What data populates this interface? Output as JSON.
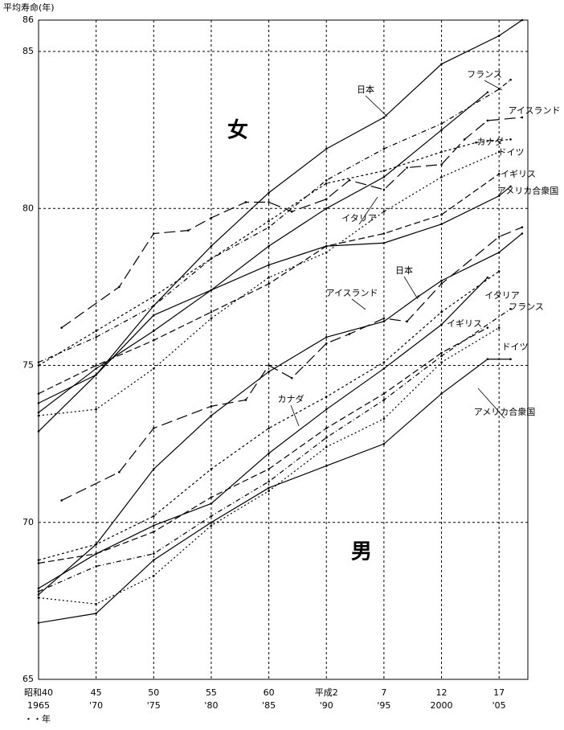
{
  "chart_data": {
    "type": "line",
    "y_label": "平均寿命(年)",
    "x_label": "・・年",
    "annotations": [
      "女",
      "男"
    ],
    "xlim": [
      1965,
      2007.5
    ],
    "ylim": [
      65,
      86
    ],
    "yticks": [
      65,
      70,
      75,
      80,
      85,
      86
    ],
    "xticks": [
      {
        "value": 1965,
        "label": "昭和40"
      },
      {
        "value": 1970,
        "label": "45"
      },
      {
        "value": 1975,
        "label": "50"
      },
      {
        "value": 1980,
        "label": "55"
      },
      {
        "value": 1985,
        "label": "60"
      },
      {
        "value": 1990,
        "label": "平成2"
      },
      {
        "value": 1995,
        "label": "7"
      },
      {
        "value": 2000,
        "label": "12"
      },
      {
        "value": 2005,
        "label": "17"
      }
    ],
    "xticks_western": [
      1965,
      {
        "value": 1970,
        "label": "'70"
      },
      {
        "value": 1975,
        "label": "'75"
      },
      {
        "value": 1980,
        "label": "'80"
      },
      {
        "value": 1985,
        "label": "'85"
      },
      {
        "value": 1990,
        "label": "'90"
      },
      {
        "value": 1995,
        "label": "'95"
      },
      2000,
      {
        "value": 2005,
        "label": "'05"
      }
    ],
    "grid": true,
    "series": [
      {
        "name": "日本",
        "color": "#000",
        "dash": "none",
        "x": [
          1965,
          1970,
          1975,
          1980,
          1985,
          1990,
          1995,
          2000,
          2005,
          2007
        ],
        "values": [
          72.9,
          74.7,
          76.9,
          78.8,
          80.5,
          81.9,
          82.9,
          84.6,
          85.5,
          86.0
        ]
      },
      {
        "name": "フランス",
        "color": "#000",
        "dash": "6 3 1 3",
        "x": [
          1965,
          1970,
          1975,
          1980,
          1985,
          1990,
          1995,
          2000,
          2005,
          2006
        ],
        "values": [
          75.1,
          75.9,
          76.9,
          78.4,
          79.4,
          80.9,
          81.9,
          82.7,
          83.8,
          84.1
        ]
      },
      {
        "name": "アイスランド",
        "color": "#000",
        "dash": "14 6",
        "x": [
          1967,
          1972,
          1975,
          1978,
          1980,
          1983,
          1985,
          1987,
          1990,
          1992,
          1995,
          1997,
          2000,
          2002,
          2004,
          2007
        ],
        "values": [
          76.2,
          77.5,
          79.2,
          79.3,
          79.7,
          80.2,
          80.2,
          79.9,
          80.3,
          80.9,
          80.6,
          81.3,
          81.4,
          82.2,
          82.8,
          82.9
        ]
      },
      {
        "name": "カナダ",
        "color": "#000",
        "dash": "3 3",
        "x": [
          1965,
          1970,
          1975,
          1980,
          1985,
          1990,
          1995,
          2000,
          2003,
          2006
        ],
        "values": [
          75.0,
          76.1,
          77.2,
          78.4,
          79.6,
          80.8,
          81.2,
          81.8,
          82.1,
          82.2
        ]
      },
      {
        "name": "ドイツ",
        "color": "#000",
        "dash": "2 3",
        "x": [
          1965,
          1970,
          1975,
          1980,
          1985,
          1990,
          1995,
          2000,
          2005
        ],
        "values": [
          73.4,
          73.6,
          74.9,
          76.5,
          77.8,
          78.6,
          79.9,
          81.0,
          81.8
        ]
      },
      {
        "name": "イギリス",
        "color": "#000",
        "dash": "8 4",
        "x": [
          1965,
          1970,
          1975,
          1980,
          1985,
          1990,
          1995,
          2000,
          2005
        ],
        "values": [
          74.1,
          75.0,
          75.8,
          76.7,
          77.6,
          78.8,
          79.2,
          79.8,
          81.1
        ]
      },
      {
        "name": "アメリカ合衆国",
        "color": "#000",
        "dash": "none",
        "x": [
          1965,
          1970,
          1975,
          1980,
          1985,
          1990,
          1995,
          2000,
          2005,
          2006
        ],
        "values": [
          73.8,
          74.7,
          76.6,
          77.4,
          78.2,
          78.8,
          78.9,
          79.5,
          80.4,
          80.7
        ]
      },
      {
        "name": "イタリア",
        "color": "#000",
        "dash": "none",
        "x": [
          1965,
          1970,
          1975,
          1980,
          1985,
          1990,
          1995,
          2000,
          2004
        ],
        "values": [
          73.5,
          74.9,
          76.1,
          77.4,
          78.8,
          80.0,
          81.0,
          82.5,
          83.7
        ]
      },
      {
        "name": "日本",
        "color": "#000",
        "dash": "none",
        "x": [
          1965,
          1970,
          1975,
          1980,
          1985,
          1990,
          1995,
          1998,
          2000,
          2005,
          2007
        ],
        "values": [
          67.7,
          69.3,
          71.7,
          73.4,
          74.8,
          75.9,
          76.4,
          77.2,
          77.7,
          78.6,
          79.2
        ]
      },
      {
        "name": "アイスランド",
        "color": "#000",
        "dash": "14 6",
        "x": [
          1967,
          1972,
          1975,
          1980,
          1983,
          1985,
          1987,
          1990,
          1992,
          1995,
          1997,
          2000,
          2005,
          2007
        ],
        "values": [
          70.7,
          71.6,
          73.0,
          73.7,
          73.9,
          75.0,
          74.6,
          75.7,
          76.0,
          76.5,
          76.4,
          77.6,
          79.1,
          79.4
        ]
      },
      {
        "name": "イタリア",
        "color": "#000",
        "dash": "none",
        "x": [
          1965,
          1970,
          1975,
          1980,
          1985,
          1990,
          1995,
          2000,
          2004
        ],
        "values": [
          67.9,
          69.0,
          69.9,
          70.6,
          72.2,
          73.6,
          74.9,
          76.3,
          77.8
        ]
      },
      {
        "name": "フランス",
        "color": "#000",
        "dash": "6 3 1 3",
        "x": [
          1965,
          1970,
          1975,
          1980,
          1985,
          1990,
          1995,
          2000,
          2006
        ],
        "values": [
          67.8,
          68.6,
          69.0,
          70.2,
          71.3,
          72.7,
          73.9,
          75.3,
          76.8
        ]
      },
      {
        "name": "イギリス",
        "color": "#000",
        "dash": "8 4",
        "x": [
          1965,
          1970,
          1975,
          1980,
          1985,
          1990,
          1995,
          2000,
          2004
        ],
        "values": [
          68.7,
          69.0,
          69.7,
          70.8,
          71.7,
          73.0,
          74.1,
          75.4,
          76.2
        ]
      },
      {
        "name": "ドイツ",
        "color": "#000",
        "dash": "2 3",
        "x": [
          1965,
          1970,
          1975,
          1980,
          1985,
          1990,
          1995,
          2000,
          2005
        ],
        "values": [
          67.6,
          67.4,
          68.3,
          69.9,
          71.0,
          72.4,
          73.3,
          75.1,
          76.2
        ]
      },
      {
        "name": "カナダ",
        "color": "#000",
        "dash": "3 3",
        "x": [
          1965,
          1970,
          1975,
          1980,
          1985,
          1990,
          1995,
          2000,
          2005
        ],
        "values": [
          68.8,
          69.3,
          70.2,
          71.7,
          73.0,
          74.0,
          75.1,
          76.7,
          78.0
        ]
      },
      {
        "name": "アメリカ合衆国",
        "color": "#000",
        "dash": "none",
        "x": [
          1965,
          1970,
          1975,
          1980,
          1985,
          1990,
          1995,
          2000,
          2004,
          2006
        ],
        "values": [
          66.8,
          67.1,
          68.8,
          70.0,
          71.1,
          71.8,
          72.5,
          74.1,
          75.2,
          75.2
        ]
      }
    ]
  }
}
